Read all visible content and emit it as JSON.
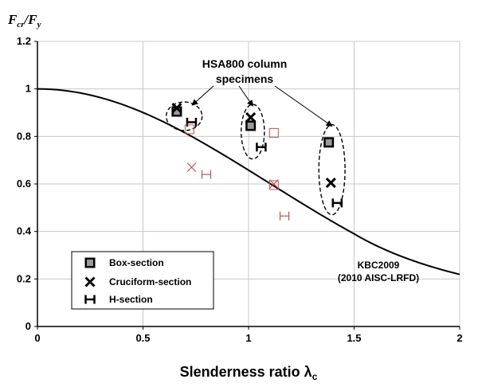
{
  "chart_data": {
    "type": "scatter",
    "title": "",
    "ylabel": {
      "main": "F",
      "main_sub": "cr",
      "sep": "/",
      "den": "F",
      "den_sub": "y"
    },
    "xlabel": {
      "main": "Slenderness ratio λ",
      "sub": "c"
    },
    "xlim": [
      0,
      2
    ],
    "ylim": [
      0,
      1.2
    ],
    "xticks": [
      "0",
      "0.5",
      "1",
      "1.5",
      "2"
    ],
    "yticks": [
      "0",
      "0.2",
      "0.4",
      "0.6",
      "0.8",
      "1",
      "1.2"
    ],
    "grid": true,
    "legend": {
      "position": "bottom-left",
      "entries": [
        {
          "label": "Box-section",
          "marker": "box"
        },
        {
          "label": "Cruciform-section",
          "marker": "cross"
        },
        {
          "label": "H-section",
          "marker": "hsec"
        }
      ]
    },
    "design_curve": {
      "label_line1": "KBC2009",
      "label_line2": "(2010 AISC-LRFD)",
      "equation": "Fcr/Fy = 0.658^(lambda^2) for lambda <= 1.5; 0.877/lambda^2 for lambda > 1.5"
    },
    "annotation": {
      "line1": "HSA800 column",
      "line2": "specimens"
    },
    "series": [
      {
        "name": "Box-section (HSA800)",
        "marker": "box",
        "style": "filled",
        "color": "#000000",
        "points": [
          [
            0.66,
            0.905
          ],
          [
            1.01,
            0.845
          ],
          [
            1.38,
            0.775
          ]
        ]
      },
      {
        "name": "Cruciform-section (HSA800)",
        "marker": "cross",
        "style": "filled",
        "color": "#000000",
        "points": [
          [
            0.66,
            0.92
          ],
          [
            1.01,
            0.88
          ],
          [
            1.39,
            0.605
          ]
        ]
      },
      {
        "name": "H-section (HSA800)",
        "marker": "hsec",
        "style": "filled",
        "color": "#000000",
        "points": [
          [
            0.73,
            0.86
          ],
          [
            1.06,
            0.755
          ],
          [
            1.42,
            0.52
          ]
        ]
      },
      {
        "name": "Box-section (other)",
        "marker": "box",
        "style": "open",
        "color": "#c0504d",
        "points": [
          [
            0.72,
            0.83
          ],
          [
            1.12,
            0.815
          ],
          [
            1.12,
            0.595
          ]
        ]
      },
      {
        "name": "Cruciform-section (other)",
        "marker": "cross",
        "style": "open",
        "color": "#c0504d",
        "points": [
          [
            0.73,
            0.67
          ],
          [
            1.12,
            0.6
          ]
        ]
      },
      {
        "name": "H-section (other)",
        "marker": "hsec",
        "style": "open",
        "color": "#c0504d",
        "points": [
          [
            0.8,
            0.64
          ],
          [
            1.17,
            0.465
          ]
        ]
      }
    ],
    "groups": [
      {
        "cx": 0.695,
        "cy": 0.885,
        "rx": 0.085,
        "ry": 0.06
      },
      {
        "cx": 1.02,
        "cy": 0.82,
        "rx": 0.055,
        "ry": 0.115
      },
      {
        "cx": 1.395,
        "cy": 0.66,
        "rx": 0.062,
        "ry": 0.19
      }
    ]
  }
}
